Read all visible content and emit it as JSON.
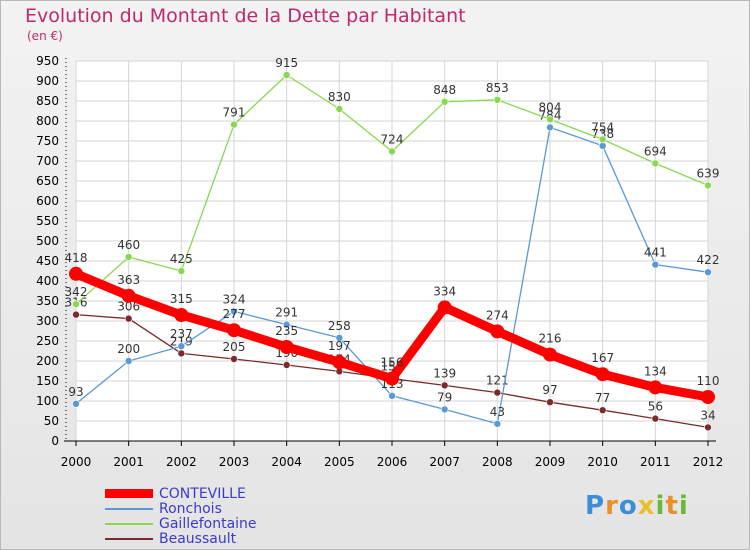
{
  "chart_data": {
    "type": "line",
    "title": "Evolution du Montant de la Dette par Habitant",
    "subtitle": "(en €)",
    "xlabel": "",
    "ylabel": "",
    "x": [
      "2000",
      "2001",
      "2002",
      "2003",
      "2004",
      "2005",
      "2006",
      "2007",
      "2008",
      "2009",
      "2010",
      "2011",
      "2012"
    ],
    "ylim": [
      0,
      950
    ],
    "yticks": [
      0,
      50,
      100,
      150,
      200,
      250,
      300,
      350,
      400,
      450,
      500,
      550,
      600,
      650,
      700,
      750,
      800,
      850,
      900,
      950
    ],
    "grid": true,
    "legend_position": "bottom-left",
    "series": [
      {
        "name": "CONTEVILLE",
        "color": "#ff0000",
        "values": [
          418,
          363,
          315,
          277,
          235,
          197,
          156,
          334,
          274,
          216,
          167,
          134,
          110
        ]
      },
      {
        "name": "Ronchois",
        "color": "#5a9ad4",
        "values": [
          93,
          200,
          237,
          324,
          291,
          258,
          113,
          79,
          43,
          784,
          738,
          441,
          422
        ]
      },
      {
        "name": "Gaillefontaine",
        "color": "#88d850",
        "values": [
          342,
          460,
          425,
          791,
          915,
          830,
          724,
          848,
          853,
          804,
          754,
          694,
          639
        ]
      },
      {
        "name": "Beaussault",
        "color": "#7a2a2a",
        "values": [
          316,
          306,
          219,
          205,
          190,
          174,
          156,
          139,
          121,
          97,
          77,
          56,
          34
        ]
      }
    ]
  },
  "brand": {
    "letters": [
      "P",
      "r",
      "o",
      "x",
      "i",
      "t",
      "i"
    ],
    "colors": [
      "#3a8fd6",
      "#e8912a",
      "#3a8fd6",
      "#e8c12a",
      "#6ab83a",
      "#e8912a",
      "#6ab83a"
    ]
  }
}
